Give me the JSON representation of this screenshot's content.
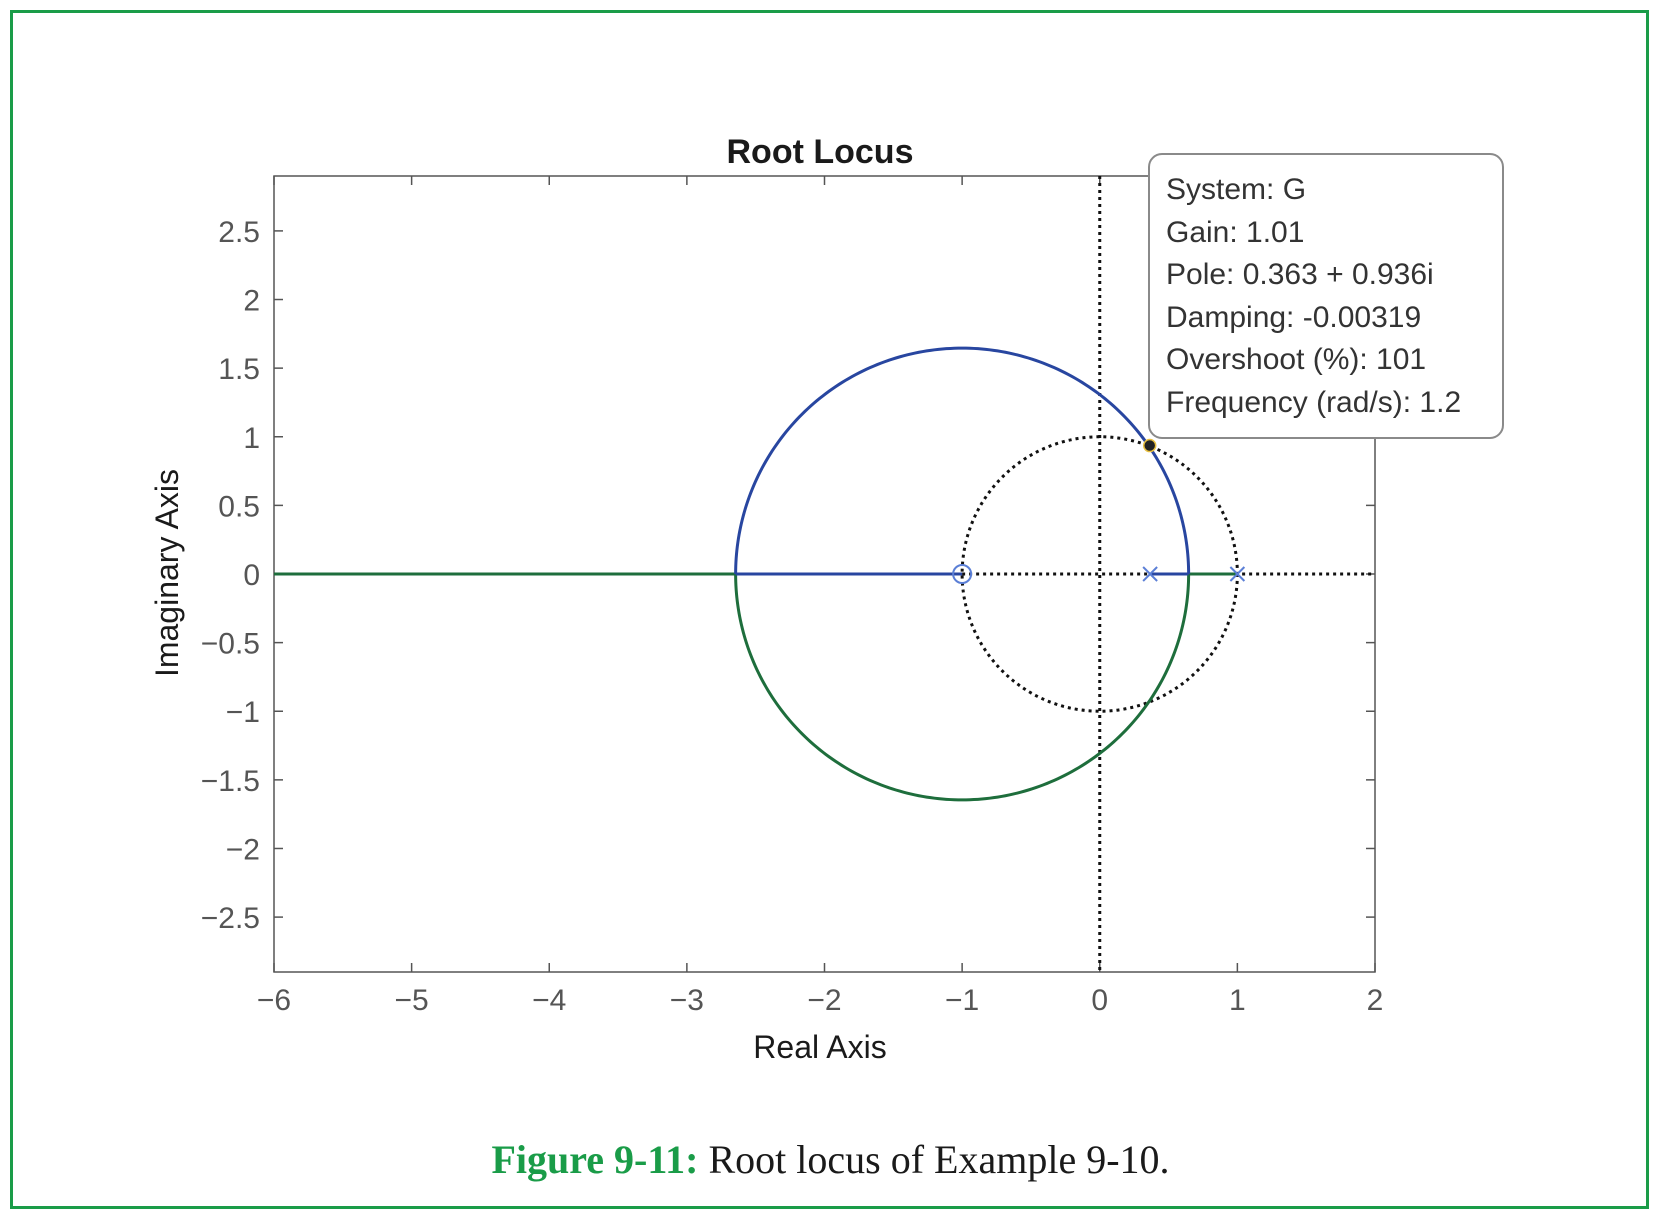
{
  "chart_data": {
    "type": "line",
    "title": "Root Locus",
    "xlabel": "Real Axis",
    "ylabel": "Imaginary Axis",
    "xlim": [
      -6,
      2
    ],
    "ylim": [
      -2.9,
      2.9
    ],
    "x_ticks": [
      -6,
      -5,
      -4,
      -3,
      -2,
      -1,
      0,
      1,
      2
    ],
    "x_tick_labels": [
      "−6",
      "−5",
      "−4",
      "−3",
      "−2",
      "−1",
      "0",
      "1",
      "2"
    ],
    "y_ticks": [
      2.5,
      2,
      1.5,
      1,
      0.5,
      0,
      -0.5,
      -1,
      -1.5,
      -2,
      -2.5
    ],
    "y_tick_labels": [
      "2.5",
      "2",
      "1.5",
      "1",
      "0.5",
      "0",
      "−0.5",
      "−1",
      "−1.5",
      "−2",
      "−2.5"
    ],
    "grid": false,
    "series": [
      {
        "color": "#2846a0",
        "branch": "upper",
        "points": [
          [
            0.366,
            0
          ],
          [
            0.6458,
            0
          ],
          [
            0.6,
            0.7
          ],
          [
            0.363,
            0.936
          ],
          [
            0,
            1.309
          ],
          [
            -1,
            1.6458
          ],
          [
            -2,
            1.309
          ],
          [
            -2.6458,
            0
          ],
          [
            -1,
            0
          ]
        ]
      },
      {
        "color": "#1e6e3c",
        "branch": "lower",
        "points": [
          [
            1,
            0
          ],
          [
            0.6458,
            0
          ],
          [
            0.6,
            -0.7
          ],
          [
            0.363,
            -0.936
          ],
          [
            0,
            -1.309
          ],
          [
            -1,
            -1.6458
          ],
          [
            -2,
            -1.309
          ],
          [
            -2.6458,
            0
          ],
          [
            -6,
            0
          ]
        ]
      }
    ],
    "locus_circle": {
      "center": [
        -1,
        0
      ],
      "radius": 1.6458
    },
    "poles": [
      [
        0.366,
        0
      ],
      [
        1,
        0
      ]
    ],
    "zeros": [
      [
        -1,
        0
      ]
    ],
    "unit_circle": {
      "center": [
        0,
        0
      ],
      "radius": 1
    },
    "selected_point": [
      0.363,
      0.936
    ],
    "datatip": [
      "System: G",
      "Gain: 1.01",
      "Pole: 0.363 + 0.936i",
      "Damping: -0.00319",
      "Overshoot (%): 101",
      "Frequency (rad/s): 1.2"
    ],
    "colors": {
      "upper": "#2846a0",
      "lower": "#1e6e3c",
      "pole_marker": "#5b7fd6",
      "grid_dotted": "#111111",
      "frame": "#1a9c48"
    }
  },
  "caption": {
    "label": "Figure 9-11:",
    "text": " Root locus of Example 9-10."
  }
}
